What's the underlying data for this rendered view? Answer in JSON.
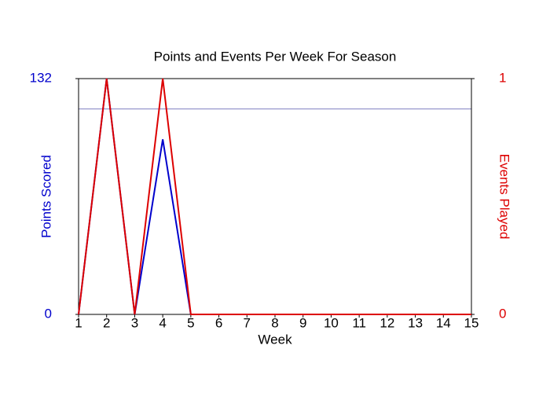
{
  "chart_data": {
    "type": "line",
    "title": "Points and Events Per Week For Season",
    "x_label": "Week",
    "y_label": "Points Scored",
    "y2_label": "Events Played",
    "x": [
      1,
      2,
      3,
      4,
      5,
      6,
      7,
      8,
      9,
      10,
      11,
      12,
      13,
      14,
      15
    ],
    "xlim": [
      1,
      15
    ],
    "xticks": [
      1,
      2,
      3,
      4,
      5,
      6,
      7,
      8,
      9,
      10,
      11,
      12,
      13,
      14,
      15
    ],
    "ylim": [
      0,
      132
    ],
    "yticks": [
      0,
      132
    ],
    "y2lim": [
      0,
      1
    ],
    "y2ticks": [
      0,
      1
    ],
    "reference_line": {
      "value": 115,
      "color": "#8080c0"
    },
    "series": [
      {
        "name": "Points Scored",
        "color": "#0000cc",
        "values": [
          0,
          132,
          0,
          98,
          0,
          0,
          0,
          0,
          0,
          0,
          0,
          0,
          0,
          0,
          0
        ]
      },
      {
        "name": "Events Played",
        "color": "#dd0000",
        "axis": "y2",
        "values": [
          0,
          1,
          0,
          1,
          0,
          0,
          0,
          0,
          0,
          0,
          0,
          0,
          0,
          0,
          0
        ]
      }
    ]
  }
}
